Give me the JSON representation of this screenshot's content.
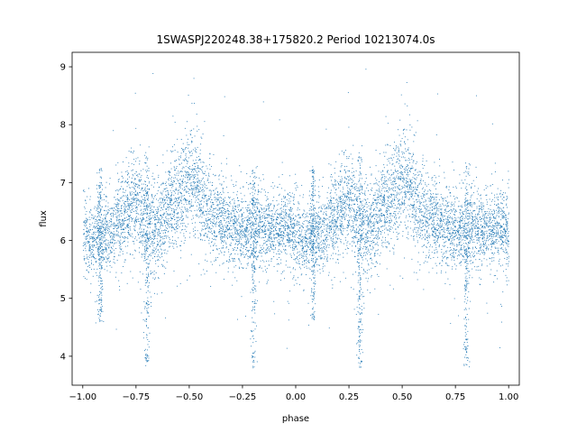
{
  "chart_data": {
    "type": "scatter",
    "title": "1SWASPJ220248.38+175820.2 Period 10213074.0s",
    "xlabel": "phase",
    "ylabel": "flux",
    "xlim": [
      -1.05,
      1.05
    ],
    "ylim": [
      3.5,
      9.25
    ],
    "x_ticks": [
      -1.0,
      -0.75,
      -0.5,
      -0.25,
      0.0,
      0.25,
      0.5,
      0.75,
      1.0
    ],
    "x_tick_labels": [
      "−1.00",
      "−0.75",
      "−0.50",
      "−0.25",
      "0.00",
      "0.25",
      "0.50",
      "0.75",
      "1.00"
    ],
    "y_ticks": [
      4,
      5,
      6,
      7,
      8,
      9
    ],
    "y_tick_labels": [
      "4",
      "5",
      "6",
      "7",
      "8",
      "9"
    ],
    "grid": false,
    "marker_color": "#1f77b4",
    "profile": {
      "phase": [
        0.0,
        0.05,
        0.1,
        0.15,
        0.2,
        0.25,
        0.3,
        0.35,
        0.4,
        0.45,
        0.5,
        0.55,
        0.6,
        0.65,
        0.7,
        0.75,
        0.8,
        0.85,
        0.9,
        0.95,
        1.0
      ],
      "median_flux": [
        6.1,
        6.0,
        6.15,
        6.3,
        6.5,
        6.65,
        6.3,
        6.2,
        6.5,
        6.8,
        7.0,
        6.9,
        6.45,
        6.35,
        6.25,
        6.2,
        6.15,
        6.2,
        6.25,
        6.2,
        6.1
      ],
      "spread": [
        0.45,
        0.4,
        0.45,
        0.45,
        0.5,
        0.6,
        0.55,
        0.5,
        0.5,
        0.55,
        0.6,
        0.6,
        0.5,
        0.45,
        0.45,
        0.45,
        0.45,
        0.45,
        0.4,
        0.4,
        0.45
      ]
    },
    "dips": [
      {
        "phase": 0.3,
        "min_flux": 3.8
      },
      {
        "phase": -0.7,
        "min_flux": 3.8
      },
      {
        "phase": 0.08,
        "min_flux": 4.6
      },
      {
        "phase": -0.92,
        "min_flux": 4.6
      },
      {
        "phase": 0.8,
        "min_flux": 3.8
      },
      {
        "phase": -0.2,
        "min_flux": 3.8
      }
    ]
  }
}
